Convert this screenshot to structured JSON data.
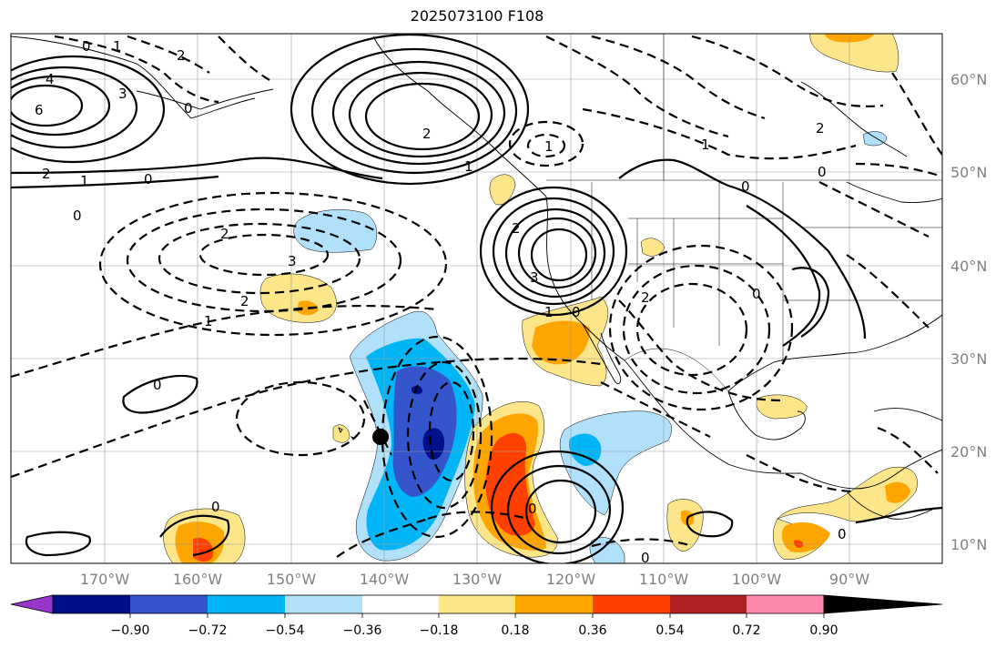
{
  "title": "2025073100 F108",
  "map": {
    "lon_range": [
      -180,
      -80
    ],
    "lat_range": [
      8,
      66
    ],
    "grid": true,
    "lat_labels": [
      "60°N",
      "50°N",
      "40°N",
      "30°N",
      "20°N",
      "10°N"
    ],
    "lon_labels": [
      "170°W",
      "160°W",
      "150°W",
      "140°W",
      "130°W",
      "120°W",
      "110°W",
      "100°W",
      "90°W"
    ],
    "marker": {
      "lon": -140,
      "lat": 21.5
    }
  },
  "colorbar": {
    "colors": [
      "#9a35cc",
      "#000f8a",
      "#3455cc",
      "#00b5f5",
      "#b0e0fa",
      "#ffffff",
      "#fde68a",
      "#ffa500",
      "#ff4000",
      "#b22222",
      "#ff88ad"
    ],
    "labels": [
      "−0.90",
      "−0.72",
      "−0.54",
      "−0.36",
      "−0.18",
      "0.18",
      "0.36",
      "0.54",
      "0.72",
      "0.90"
    ]
  },
  "contour_labels": [
    "0",
    "1",
    "2",
    "3",
    "4",
    "6",
    "0",
    "1",
    "2",
    "0",
    "2",
    "3",
    "2",
    "1",
    "0",
    "0",
    "1",
    "2",
    "3",
    "2",
    "1",
    "2",
    "0",
    "0",
    "1",
    "2",
    "0",
    "0",
    "1",
    "0",
    "0",
    "0",
    "0"
  ]
}
